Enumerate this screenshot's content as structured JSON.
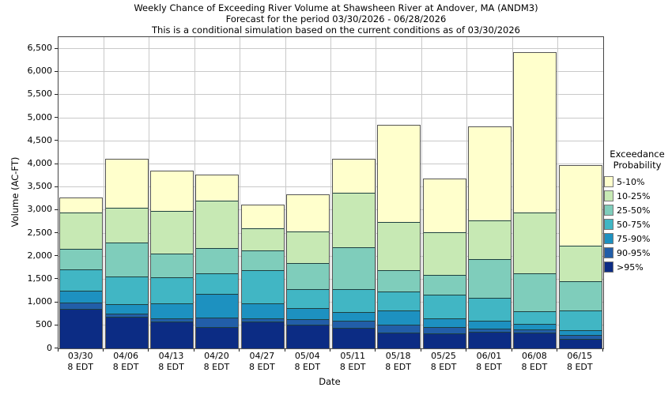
{
  "title": {
    "line1": "Weekly Chance of Exceeding River Volume at Shawsheen River at Andover, MA (ANDM3)",
    "line2": "Forecast for the period 03/30/2026 - 06/28/2026",
    "line3": "This is a conditional simulation based on the current conditions as of 03/30/2026"
  },
  "axes": {
    "y_label": "Volume (AC-FT)",
    "x_label": "Date",
    "y_tick_labels": [
      "0",
      "500",
      "1,000",
      "1,500",
      "2,000",
      "2,500",
      "3,000",
      "3,500",
      "4,000",
      "4,500",
      "5,000",
      "5,500",
      "6,000",
      "6,500"
    ],
    "y_tick_step": 500,
    "grid_color": "#c9c9c9"
  },
  "legend": {
    "title_line1": "Exceedance",
    "title_line2": "Probability",
    "items": [
      {
        "label": "5-10%",
        "color": "#FFFFCC"
      },
      {
        "label": "10-25%",
        "color": "#C7E9B4"
      },
      {
        "label": "25-50%",
        "color": "#7FCDBB"
      },
      {
        "label": "50-75%",
        "color": "#41B6C4"
      },
      {
        "label": "75-90%",
        "color": "#1D91C0"
      },
      {
        "label": "90-95%",
        "color": "#225EA8"
      },
      {
        "label": ">95%",
        "color": "#0C2C84"
      }
    ]
  },
  "chart_data": {
    "type": "bar",
    "stacked": true,
    "title": "Weekly Chance of Exceeding River Volume at Shawsheen River at Andover, MA (ANDM3)",
    "xlabel": "Date",
    "ylabel": "Volume (AC-FT)",
    "ylim": [
      0,
      6750
    ],
    "grid": true,
    "legend_position": "right",
    "categories": [
      {
        "date": "03/30",
        "time": "8 EDT"
      },
      {
        "date": "04/06",
        "time": "8 EDT"
      },
      {
        "date": "04/13",
        "time": "8 EDT"
      },
      {
        "date": "04/20",
        "time": "8 EDT"
      },
      {
        "date": "04/27",
        "time": "8 EDT"
      },
      {
        "date": "05/04",
        "time": "8 EDT"
      },
      {
        "date": "05/11",
        "time": "8 EDT"
      },
      {
        "date": "05/18",
        "time": "8 EDT"
      },
      {
        "date": "05/25",
        "time": "8 EDT"
      },
      {
        "date": "06/01",
        "time": "8 EDT"
      },
      {
        "date": "06/08",
        "time": "8 EDT"
      },
      {
        "date": "06/15",
        "time": "8 EDT"
      }
    ],
    "bar_totals": [
      3260,
      4090,
      3840,
      3760,
      3110,
      3320,
      4090,
      4840,
      3660,
      4790,
      6410,
      3960
    ],
    "series": [
      {
        "name": "5-10%",
        "color": "#FFFFCC",
        "values": [
          310,
          1040,
          860,
          550,
          500,
          790,
          720,
          2090,
          1140,
          2020,
          3460,
          1730
        ]
      },
      {
        "name": "10-25%",
        "color": "#C7E9B4",
        "values": [
          790,
          760,
          930,
          1040,
          490,
          680,
          1170,
          1060,
          930,
          840,
          1320,
          780
        ]
      },
      {
        "name": "25-50%",
        "color": "#7FCDBB",
        "values": [
          450,
          730,
          510,
          550,
          430,
          570,
          920,
          460,
          420,
          840,
          830,
          630
        ]
      },
      {
        "name": "50-75%",
        "color": "#41B6C4",
        "values": [
          460,
          600,
          560,
          430,
          720,
          400,
          490,
          410,
          520,
          490,
          270,
          430
        ]
      },
      {
        "name": "75-90%",
        "color": "#1D91C0",
        "values": [
          260,
          210,
          330,
          520,
          320,
          240,
          190,
          310,
          190,
          170,
          120,
          100
        ]
      },
      {
        "name": "90-95%",
        "color": "#225EA8",
        "values": [
          130,
          70,
          70,
          200,
          60,
          130,
          160,
          160,
          130,
          70,
          70,
          90
        ]
      },
      {
        "name": ">95%",
        "color": "#0C2C84",
        "values": [
          860,
          680,
          580,
          470,
          590,
          510,
          440,
          350,
          330,
          360,
          340,
          200
        ]
      }
    ]
  }
}
